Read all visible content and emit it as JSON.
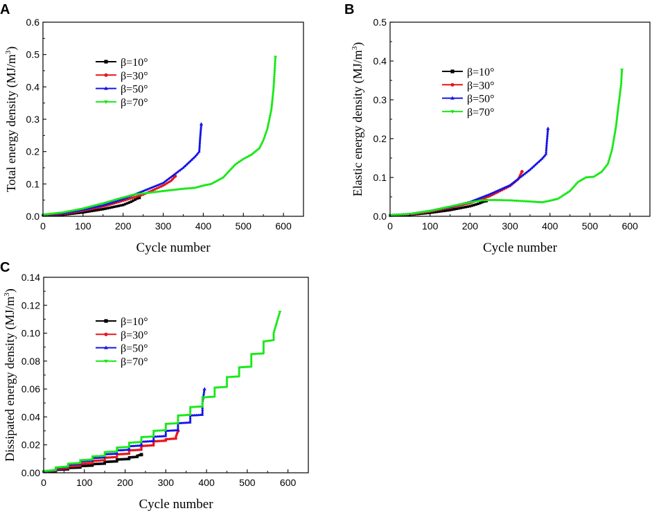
{
  "figure": {
    "panel_labels": [
      "A",
      "B",
      "C"
    ]
  },
  "chart_data": [
    {
      "type": "line",
      "panel": "A",
      "title": "",
      "xlabel": "Cycle number",
      "ylabel": "Total energy density (MJ/m",
      "ylabel_sup": "3",
      "ylabel_close": ")",
      "xlim": [
        0,
        650
      ],
      "ylim": [
        0,
        0.6
      ],
      "xticks": [
        0,
        100,
        200,
        300,
        400,
        500,
        600
      ],
      "yticks": [
        0.0,
        0.1,
        0.2,
        0.3,
        0.4,
        0.5,
        0.6
      ],
      "xtick_labels": [
        "0",
        "100",
        "200",
        "300",
        "400",
        "500",
        "600"
      ],
      "ytick_labels": [
        "0.0",
        "0.1",
        "0.2",
        "0.3",
        "0.4",
        "0.5",
        "0.6"
      ],
      "legend": [
        "β=10°",
        "β=30°",
        "β=50°",
        "β=70°"
      ],
      "series": [
        {
          "name": "β=10°",
          "color": "#000000",
          "marker": "square",
          "x": [
            0,
            50,
            100,
            150,
            200,
            220,
            240
          ],
          "y": [
            0.003,
            0.005,
            0.012,
            0.022,
            0.035,
            0.045,
            0.058
          ]
        },
        {
          "name": "β=30°",
          "color": "#e8141c",
          "marker": "circle",
          "x": [
            0,
            50,
            100,
            150,
            200,
            250,
            300,
            320,
            330
          ],
          "y": [
            0.004,
            0.007,
            0.017,
            0.03,
            0.048,
            0.067,
            0.095,
            0.11,
            0.124
          ]
        },
        {
          "name": "β=50°",
          "color": "#1414e8",
          "marker": "triangle-up",
          "x": [
            0,
            50,
            100,
            150,
            200,
            250,
            300,
            350,
            380,
            390,
            392,
            395
          ],
          "y": [
            0.005,
            0.009,
            0.02,
            0.034,
            0.053,
            0.078,
            0.103,
            0.15,
            0.185,
            0.2,
            0.24,
            0.285
          ]
        },
        {
          "name": "β=70°",
          "color": "#19e819",
          "marker": "triangle-down",
          "x": [
            0,
            50,
            100,
            150,
            200,
            230,
            260,
            300,
            350,
            380,
            400,
            420,
            450,
            480,
            500,
            520,
            540,
            550,
            560,
            570,
            575,
            578,
            580
          ],
          "y": [
            0.005,
            0.012,
            0.024,
            0.04,
            0.058,
            0.068,
            0.072,
            0.078,
            0.085,
            0.088,
            0.095,
            0.1,
            0.12,
            0.16,
            0.177,
            0.19,
            0.21,
            0.235,
            0.27,
            0.33,
            0.39,
            0.45,
            0.492
          ]
        }
      ]
    },
    {
      "type": "line",
      "panel": "B",
      "title": "",
      "xlabel": "Cycle number",
      "ylabel": "Elastic energy density (MJ/m",
      "ylabel_sup": "3",
      "ylabel_close": ")",
      "xlim": [
        0,
        650
      ],
      "ylim": [
        0,
        0.5
      ],
      "xticks": [
        0,
        100,
        200,
        300,
        400,
        500,
        600
      ],
      "yticks": [
        0.0,
        0.1,
        0.2,
        0.3,
        0.4,
        0.5
      ],
      "xtick_labels": [
        "0",
        "100",
        "200",
        "300",
        "400",
        "500",
        "600"
      ],
      "ytick_labels": [
        "0.0",
        "0.1",
        "0.2",
        "0.3",
        "0.4",
        "0.5"
      ],
      "legend": [
        "β=10°",
        "β=30°",
        "β=50°",
        "β=70°"
      ],
      "series": [
        {
          "name": "β=10°",
          "color": "#000000",
          "marker": "square",
          "x": [
            0,
            50,
            100,
            150,
            200,
            220,
            240
          ],
          "y": [
            0.002,
            0.004,
            0.009,
            0.016,
            0.026,
            0.032,
            0.04
          ]
        },
        {
          "name": "β=30°",
          "color": "#e8141c",
          "marker": "circle",
          "x": [
            0,
            50,
            100,
            150,
            200,
            250,
            300,
            320,
            330
          ],
          "y": [
            0.003,
            0.005,
            0.012,
            0.022,
            0.034,
            0.052,
            0.078,
            0.095,
            0.115
          ]
        },
        {
          "name": "β=50°",
          "color": "#1414e8",
          "marker": "triangle-up",
          "x": [
            0,
            50,
            100,
            150,
            200,
            250,
            300,
            350,
            380,
            390,
            392,
            395
          ],
          "y": [
            0.003,
            0.006,
            0.014,
            0.024,
            0.037,
            0.057,
            0.08,
            0.12,
            0.148,
            0.16,
            0.19,
            0.226
          ]
        },
        {
          "name": "β=70°",
          "color": "#19e819",
          "marker": "triangle-down",
          "x": [
            0,
            50,
            100,
            150,
            200,
            230,
            260,
            300,
            350,
            380,
            400,
            420,
            450,
            470,
            490,
            510,
            530,
            545,
            555,
            565,
            572,
            578,
            580
          ],
          "y": [
            0.003,
            0.006,
            0.014,
            0.025,
            0.036,
            0.041,
            0.042,
            0.041,
            0.038,
            0.036,
            0.04,
            0.045,
            0.065,
            0.088,
            0.1,
            0.102,
            0.115,
            0.135,
            0.17,
            0.23,
            0.29,
            0.34,
            0.377
          ]
        }
      ]
    },
    {
      "type": "line",
      "panel": "C",
      "title": "",
      "xlabel": "Cycle number",
      "ylabel": "Dissipated energy density (MJ/m",
      "ylabel_sup": "3",
      "ylabel_close": ")",
      "xlim": [
        0,
        650
      ],
      "ylim": [
        0,
        0.14
      ],
      "xticks": [
        0,
        100,
        200,
        300,
        400,
        500,
        600
      ],
      "yticks": [
        0.0,
        0.02,
        0.04,
        0.06,
        0.08,
        0.1,
        0.12,
        0.14
      ],
      "xtick_labels": [
        "0",
        "100",
        "200",
        "300",
        "400",
        "500",
        "600"
      ],
      "ytick_labels": [
        "0.00",
        "0.02",
        "0.04",
        "0.06",
        "0.08",
        "0.10",
        "0.12",
        "0.14"
      ],
      "legend": [
        "β=10°",
        "β=30°",
        "β=50°",
        "β=70°"
      ],
      "series": [
        {
          "name": "β=10°",
          "color": "#000000",
          "marker": "square",
          "x": [
            0,
            30,
            30,
            60,
            60,
            90,
            90,
            120,
            120,
            150,
            150,
            180,
            180,
            210,
            210,
            230,
            230,
            240
          ],
          "y": [
            0.0008,
            0.0012,
            0.0022,
            0.0025,
            0.0035,
            0.0038,
            0.0048,
            0.0052,
            0.0062,
            0.0066,
            0.0078,
            0.0082,
            0.0095,
            0.0099,
            0.011,
            0.0114,
            0.0122,
            0.013
          ]
        },
        {
          "name": "β=30°",
          "color": "#e8141c",
          "marker": "circle",
          "x": [
            0,
            30,
            30,
            60,
            60,
            90,
            90,
            120,
            120,
            150,
            150,
            180,
            180,
            210,
            210,
            240,
            240,
            270,
            270,
            300,
            300,
            325,
            325,
            330
          ],
          "y": [
            0.0008,
            0.0015,
            0.0028,
            0.0033,
            0.0045,
            0.005,
            0.0065,
            0.007,
            0.0085,
            0.009,
            0.0108,
            0.0113,
            0.0132,
            0.0137,
            0.016,
            0.0165,
            0.0192,
            0.0197,
            0.0225,
            0.023,
            0.024,
            0.0245,
            0.026,
            0.03
          ]
        },
        {
          "name": "β=50°",
          "color": "#1414e8",
          "marker": "triangle-up",
          "x": [
            0,
            30,
            30,
            60,
            60,
            90,
            90,
            120,
            120,
            150,
            150,
            180,
            180,
            210,
            210,
            240,
            240,
            270,
            270,
            300,
            300,
            330,
            330,
            360,
            360,
            390,
            390,
            395
          ],
          "y": [
            0.001,
            0.0018,
            0.0035,
            0.004,
            0.0058,
            0.0063,
            0.0082,
            0.0087,
            0.0105,
            0.011,
            0.0132,
            0.0137,
            0.016,
            0.0165,
            0.019,
            0.0195,
            0.0222,
            0.0227,
            0.0258,
            0.0263,
            0.03,
            0.0305,
            0.0355,
            0.036,
            0.041,
            0.0415,
            0.05,
            0.06
          ]
        },
        {
          "name": "β=70°",
          "color": "#19e819",
          "marker": "triangle-down",
          "x": [
            0,
            30,
            30,
            60,
            60,
            90,
            90,
            120,
            120,
            150,
            150,
            180,
            180,
            210,
            210,
            240,
            240,
            270,
            270,
            300,
            300,
            330,
            330,
            360,
            360,
            390,
            390,
            420,
            420,
            450,
            450,
            480,
            480,
            510,
            510,
            540,
            540,
            565,
            565,
            575,
            580
          ],
          "y": [
            0.0012,
            0.002,
            0.0038,
            0.0045,
            0.0065,
            0.007,
            0.009,
            0.0095,
            0.0117,
            0.0122,
            0.0148,
            0.0153,
            0.018,
            0.0185,
            0.0215,
            0.022,
            0.0255,
            0.026,
            0.03,
            0.0305,
            0.035,
            0.0355,
            0.041,
            0.0415,
            0.047,
            0.0475,
            0.054,
            0.0545,
            0.061,
            0.0615,
            0.0685,
            0.069,
            0.0755,
            0.076,
            0.085,
            0.0855,
            0.094,
            0.095,
            0.1,
            0.11,
            0.115
          ]
        }
      ]
    }
  ]
}
